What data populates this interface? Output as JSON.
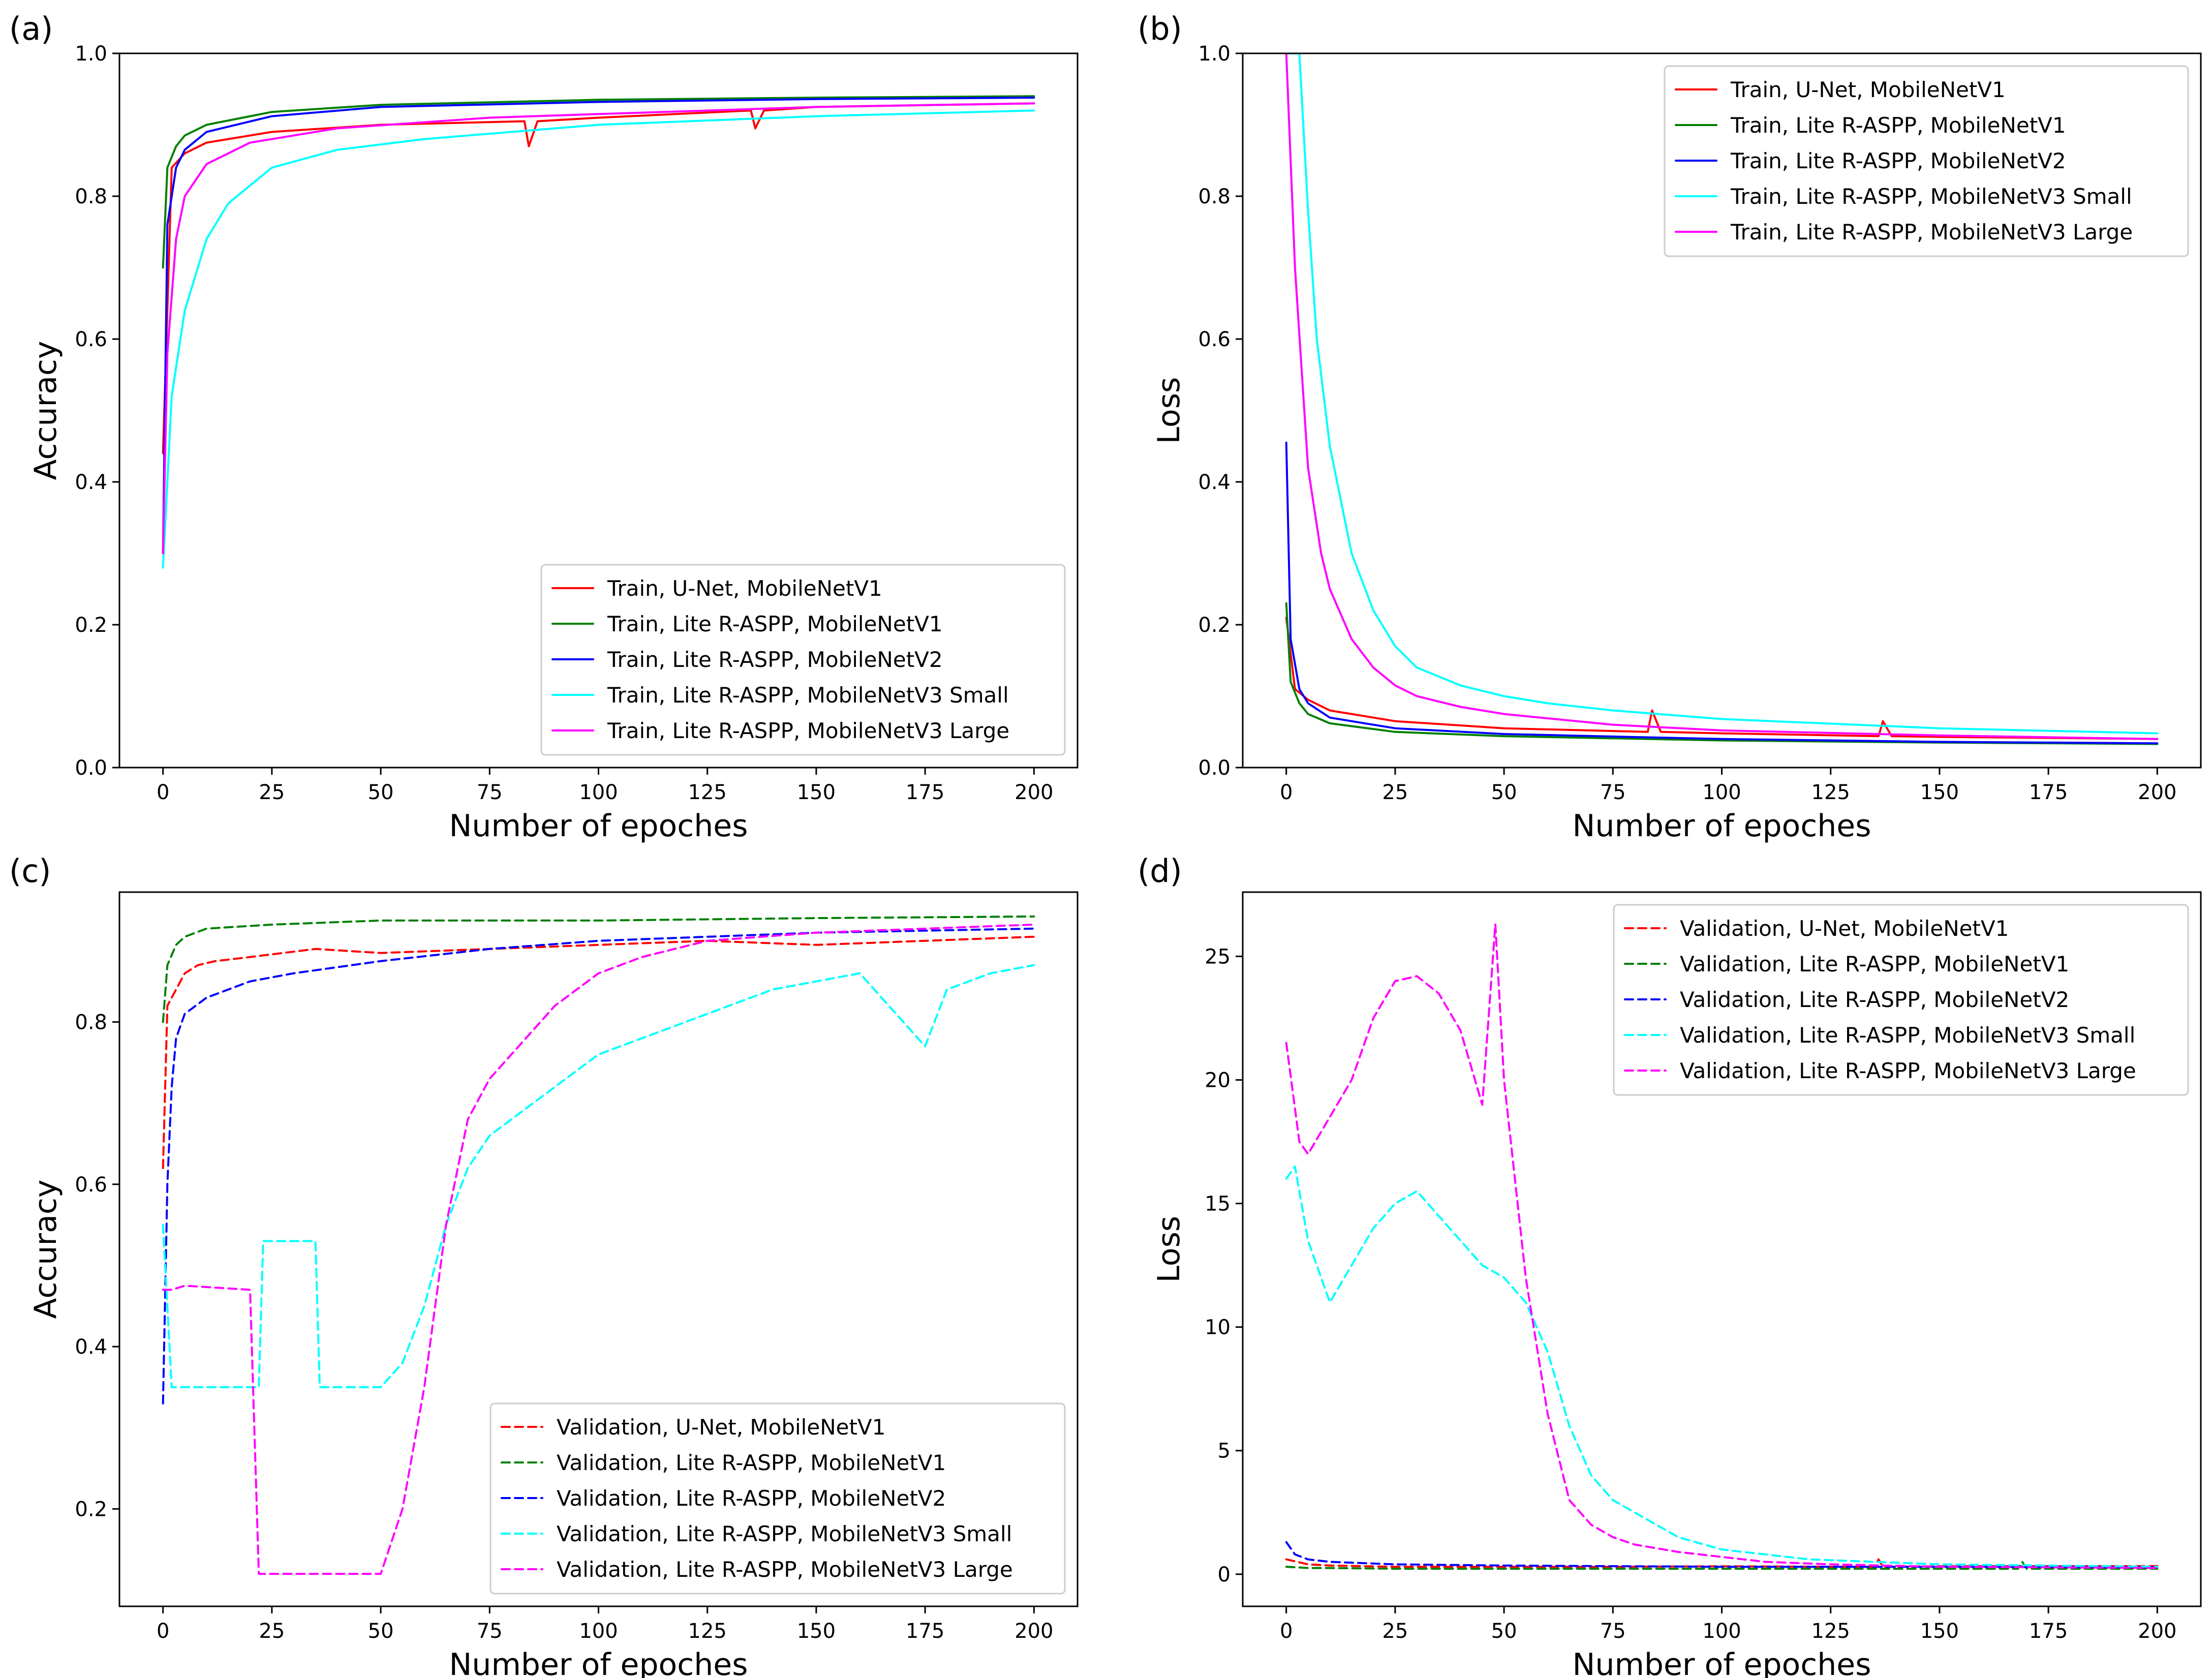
{
  "chart_data": [
    {
      "panel": "(a)",
      "type": "line",
      "line_style": "solid",
      "xlabel": "Number of epoches",
      "ylabel": "Accuracy",
      "xlim": [
        -10,
        210
      ],
      "ylim": [
        0.0,
        1.0
      ],
      "xticks": [
        0,
        25,
        50,
        75,
        100,
        125,
        150,
        175,
        200
      ],
      "yticks": [
        0.0,
        0.2,
        0.4,
        0.6,
        0.8,
        1.0
      ],
      "ytick_labels": [
        "0.0",
        "0.2",
        "0.4",
        "0.6",
        "0.8",
        "1.0"
      ],
      "legend_position": "lower-right",
      "series": [
        {
          "name": "Train, U-Net, MobileNetV1",
          "color": "#ff0000",
          "x": [
            0,
            2,
            5,
            10,
            25,
            50,
            83,
            84,
            86,
            100,
            135,
            136,
            138,
            150,
            200
          ],
          "y": [
            0.44,
            0.84,
            0.86,
            0.875,
            0.89,
            0.9,
            0.905,
            0.87,
            0.905,
            0.91,
            0.92,
            0.895,
            0.92,
            0.925,
            0.93
          ]
        },
        {
          "name": "Train, Lite R-ASPP, MobileNetV1",
          "color": "#008000",
          "x": [
            0,
            1,
            3,
            5,
            10,
            25,
            50,
            100,
            150,
            200
          ],
          "y": [
            0.7,
            0.84,
            0.87,
            0.885,
            0.9,
            0.918,
            0.928,
            0.935,
            0.938,
            0.94
          ]
        },
        {
          "name": "Train, Lite R-ASPP, MobileNetV2",
          "color": "#0000ff",
          "x": [
            0,
            1,
            3,
            5,
            10,
            25,
            50,
            100,
            150,
            200
          ],
          "y": [
            0.3,
            0.76,
            0.84,
            0.865,
            0.89,
            0.912,
            0.925,
            0.932,
            0.936,
            0.938
          ]
        },
        {
          "name": "Train, Lite R-ASPP, MobileNetV3 Small",
          "color": "#00ffff",
          "x": [
            0,
            2,
            5,
            10,
            15,
            25,
            40,
            60,
            100,
            150,
            200
          ],
          "y": [
            0.28,
            0.52,
            0.64,
            0.74,
            0.79,
            0.84,
            0.865,
            0.88,
            0.9,
            0.912,
            0.92
          ]
        },
        {
          "name": "Train, Lite R-ASPP, MobileNetV3 Large",
          "color": "#ff00ff",
          "x": [
            0,
            1,
            3,
            5,
            10,
            20,
            40,
            75,
            100,
            150,
            200
          ],
          "y": [
            0.3,
            0.58,
            0.74,
            0.8,
            0.845,
            0.875,
            0.895,
            0.91,
            0.915,
            0.925,
            0.93
          ]
        }
      ]
    },
    {
      "panel": "(b)",
      "type": "line",
      "line_style": "solid",
      "xlabel": "Number of epoches",
      "ylabel": "Loss",
      "xlim": [
        -10,
        210
      ],
      "ylim": [
        0.0,
        1.0
      ],
      "xticks": [
        0,
        25,
        50,
        75,
        100,
        125,
        150,
        175,
        200
      ],
      "yticks": [
        0.0,
        0.2,
        0.4,
        0.6,
        0.8,
        1.0
      ],
      "ytick_labels": [
        "0.0",
        "0.2",
        "0.4",
        "0.6",
        "0.8",
        "1.0"
      ],
      "legend_position": "upper-right",
      "series": [
        {
          "name": "Train, U-Net, MobileNetV1",
          "color": "#ff0000",
          "x": [
            0,
            2,
            5,
            10,
            25,
            50,
            83,
            84,
            86,
            100,
            136,
            137,
            139,
            150,
            200
          ],
          "y": [
            0.21,
            0.11,
            0.095,
            0.08,
            0.065,
            0.055,
            0.05,
            0.08,
            0.05,
            0.048,
            0.044,
            0.065,
            0.044,
            0.043,
            0.04
          ]
        },
        {
          "name": "Train, Lite R-ASPP, MobileNetV1",
          "color": "#008000",
          "x": [
            0,
            1,
            3,
            5,
            10,
            25,
            50,
            100,
            150,
            200
          ],
          "y": [
            0.23,
            0.12,
            0.09,
            0.075,
            0.062,
            0.05,
            0.044,
            0.038,
            0.035,
            0.033
          ]
        },
        {
          "name": "Train, Lite R-ASPP, MobileNetV2",
          "color": "#0000ff",
          "x": [
            0,
            1,
            3,
            5,
            10,
            25,
            50,
            100,
            150,
            200
          ],
          "y": [
            0.455,
            0.18,
            0.11,
            0.09,
            0.07,
            0.055,
            0.047,
            0.04,
            0.036,
            0.034
          ]
        },
        {
          "name": "Train, Lite R-ASPP, MobileNetV3 Small",
          "color": "#00ffff",
          "x": [
            0,
            3,
            5,
            7,
            10,
            15,
            20,
            25,
            30,
            40,
            50,
            60,
            75,
            100,
            150,
            200
          ],
          "y": [
            1.0,
            1.0,
            0.78,
            0.6,
            0.45,
            0.3,
            0.22,
            0.17,
            0.14,
            0.115,
            0.1,
            0.09,
            0.08,
            0.068,
            0.055,
            0.048
          ]
        },
        {
          "name": "Train, Lite R-ASPP, MobileNetV3 Large",
          "color": "#ff00ff",
          "x": [
            0,
            2,
            5,
            8,
            10,
            15,
            20,
            25,
            30,
            40,
            50,
            75,
            100,
            150,
            200
          ],
          "y": [
            1.0,
            0.7,
            0.42,
            0.3,
            0.25,
            0.18,
            0.14,
            0.115,
            0.1,
            0.085,
            0.075,
            0.06,
            0.052,
            0.045,
            0.04
          ]
        }
      ]
    },
    {
      "panel": "(c)",
      "type": "line",
      "line_style": "dashed",
      "xlabel": "Number of epoches",
      "ylabel": "Accuracy",
      "xlim": [
        -10,
        210
      ],
      "ylim": [
        0.08,
        0.96
      ],
      "xticks": [
        0,
        25,
        50,
        75,
        100,
        125,
        150,
        175,
        200
      ],
      "yticks": [
        0.2,
        0.4,
        0.6,
        0.8
      ],
      "ytick_labels": [
        "0.2",
        "0.4",
        "0.6",
        "0.8"
      ],
      "legend_position": "lower-right",
      "series": [
        {
          "name": "Validation, U-Net, MobileNetV1",
          "color": "#ff0000",
          "x": [
            0,
            1,
            3,
            5,
            8,
            12,
            20,
            35,
            50,
            75,
            100,
            125,
            150,
            175,
            200
          ],
          "y": [
            0.62,
            0.82,
            0.84,
            0.86,
            0.87,
            0.875,
            0.88,
            0.89,
            0.885,
            0.89,
            0.895,
            0.9,
            0.895,
            0.9,
            0.905
          ]
        },
        {
          "name": "Validation, Lite R-ASPP, MobileNetV1",
          "color": "#008000",
          "x": [
            0,
            1,
            3,
            5,
            10,
            25,
            50,
            100,
            150,
            200
          ],
          "y": [
            0.8,
            0.87,
            0.895,
            0.905,
            0.915,
            0.92,
            0.925,
            0.925,
            0.928,
            0.93
          ]
        },
        {
          "name": "Validation, Lite R-ASPP, MobileNetV2",
          "color": "#0000ff",
          "x": [
            0,
            1,
            2,
            3,
            5,
            10,
            20,
            30,
            50,
            75,
            100,
            150,
            200
          ],
          "y": [
            0.33,
            0.6,
            0.72,
            0.78,
            0.81,
            0.83,
            0.85,
            0.86,
            0.875,
            0.89,
            0.9,
            0.91,
            0.915
          ]
        },
        {
          "name": "Validation, Lite R-ASPP, MobileNetV3 Small",
          "color": "#00ffff",
          "x": [
            0,
            2,
            10,
            22,
            23,
            35,
            36,
            45,
            50,
            55,
            60,
            65,
            70,
            75,
            80,
            90,
            100,
            110,
            120,
            130,
            140,
            150,
            160,
            170,
            175,
            180,
            190,
            200
          ],
          "y": [
            0.55,
            0.35,
            0.35,
            0.35,
            0.53,
            0.53,
            0.35,
            0.35,
            0.35,
            0.38,
            0.45,
            0.55,
            0.62,
            0.66,
            0.68,
            0.72,
            0.76,
            0.78,
            0.8,
            0.82,
            0.84,
            0.85,
            0.86,
            0.8,
            0.77,
            0.84,
            0.86,
            0.87
          ]
        },
        {
          "name": "Validation, Lite R-ASPP, MobileNetV3 Large",
          "color": "#ff00ff",
          "x": [
            0,
            2,
            5,
            20,
            22,
            50,
            55,
            60,
            65,
            70,
            75,
            80,
            85,
            90,
            100,
            110,
            125,
            150,
            200
          ],
          "y": [
            0.47,
            0.47,
            0.475,
            0.47,
            0.12,
            0.12,
            0.2,
            0.35,
            0.55,
            0.68,
            0.73,
            0.76,
            0.79,
            0.82,
            0.86,
            0.88,
            0.9,
            0.91,
            0.92
          ]
        }
      ]
    },
    {
      "panel": "(d)",
      "type": "line",
      "line_style": "dashed",
      "xlabel": "Number of epoches",
      "ylabel": "Loss",
      "xlim": [
        -10,
        210
      ],
      "ylim": [
        -1.3,
        27.6
      ],
      "xticks": [
        0,
        25,
        50,
        75,
        100,
        125,
        150,
        175,
        200
      ],
      "yticks": [
        0,
        5,
        10,
        15,
        20,
        25
      ],
      "ytick_labels": [
        "0",
        "5",
        "10",
        "15",
        "20",
        "25"
      ],
      "legend_position": "upper-right",
      "series": [
        {
          "name": "Validation, U-Net, MobileNetV1",
          "color": "#ff0000",
          "x": [
            0,
            5,
            10,
            25,
            50,
            75,
            100,
            125,
            135,
            136,
            137,
            150,
            200
          ],
          "y": [
            0.6,
            0.4,
            0.35,
            0.3,
            0.3,
            0.3,
            0.32,
            0.3,
            0.3,
            0.6,
            0.3,
            0.32,
            0.33
          ]
        },
        {
          "name": "Validation, Lite R-ASPP, MobileNetV1",
          "color": "#008000",
          "x": [
            0,
            5,
            10,
            25,
            50,
            100,
            150,
            168,
            169,
            170,
            200
          ],
          "y": [
            0.3,
            0.25,
            0.25,
            0.22,
            0.22,
            0.22,
            0.22,
            0.22,
            0.5,
            0.22,
            0.22
          ]
        },
        {
          "name": "Validation, Lite R-ASPP, MobileNetV2",
          "color": "#0000ff",
          "x": [
            0,
            2,
            5,
            10,
            25,
            50,
            100,
            150,
            200
          ],
          "y": [
            1.3,
            0.8,
            0.6,
            0.5,
            0.4,
            0.35,
            0.3,
            0.3,
            0.28
          ]
        },
        {
          "name": "Validation, Lite R-ASPP, MobileNetV3 Small",
          "color": "#00ffff",
          "x": [
            0,
            2,
            5,
            10,
            15,
            20,
            25,
            30,
            35,
            40,
            45,
            50,
            55,
            60,
            65,
            70,
            75,
            80,
            90,
            100,
            110,
            120,
            150,
            200
          ],
          "y": [
            16.0,
            16.5,
            13.5,
            11.0,
            12.5,
            14.0,
            15.0,
            15.5,
            14.5,
            13.5,
            12.5,
            12.0,
            11.0,
            9.0,
            6.0,
            4.0,
            3.0,
            2.5,
            1.5,
            1.0,
            0.8,
            0.6,
            0.4,
            0.3
          ]
        },
        {
          "name": "Validation, Lite R-ASPP, MobileNetV3 Large",
          "color": "#ff00ff",
          "x": [
            0,
            3,
            5,
            10,
            15,
            20,
            25,
            30,
            35,
            40,
            45,
            48,
            50,
            55,
            60,
            65,
            70,
            75,
            80,
            90,
            100,
            110,
            125,
            150,
            200
          ],
          "y": [
            21.5,
            17.5,
            17.0,
            18.5,
            20.0,
            22.5,
            24.0,
            24.2,
            23.5,
            22.0,
            19.0,
            26.3,
            20.0,
            12.0,
            6.5,
            3.0,
            2.0,
            1.5,
            1.2,
            0.9,
            0.7,
            0.5,
            0.4,
            0.3,
            0.25
          ]
        }
      ]
    }
  ]
}
